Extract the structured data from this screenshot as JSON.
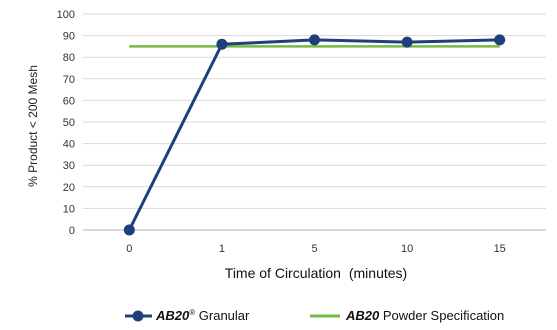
{
  "chart_data": {
    "type": "line",
    "categories": [
      "0",
      "1",
      "5",
      "10",
      "15"
    ],
    "ylim": [
      0,
      100
    ],
    "yticks": [
      0,
      10,
      20,
      30,
      40,
      50,
      60,
      70,
      80,
      90,
      100
    ],
    "ylabel": "% Product < 200 Mesh",
    "xlabel": {
      "main": "Time of Circulation",
      "unit": "(minutes)"
    },
    "grid": true,
    "legend_position": "bottom",
    "series": [
      {
        "name_bold": "AB20",
        "name_sup": "®",
        "name_rest": " Granular",
        "color": "#1f3f7a",
        "marker": "circle",
        "values": [
          0,
          86,
          88,
          87,
          88
        ]
      },
      {
        "name_bold": "AB20",
        "name_sup": "",
        "name_rest": " Powder Specification",
        "color": "#78b845",
        "marker": "none",
        "values": [
          85,
          85,
          85,
          85,
          85
        ]
      }
    ]
  }
}
